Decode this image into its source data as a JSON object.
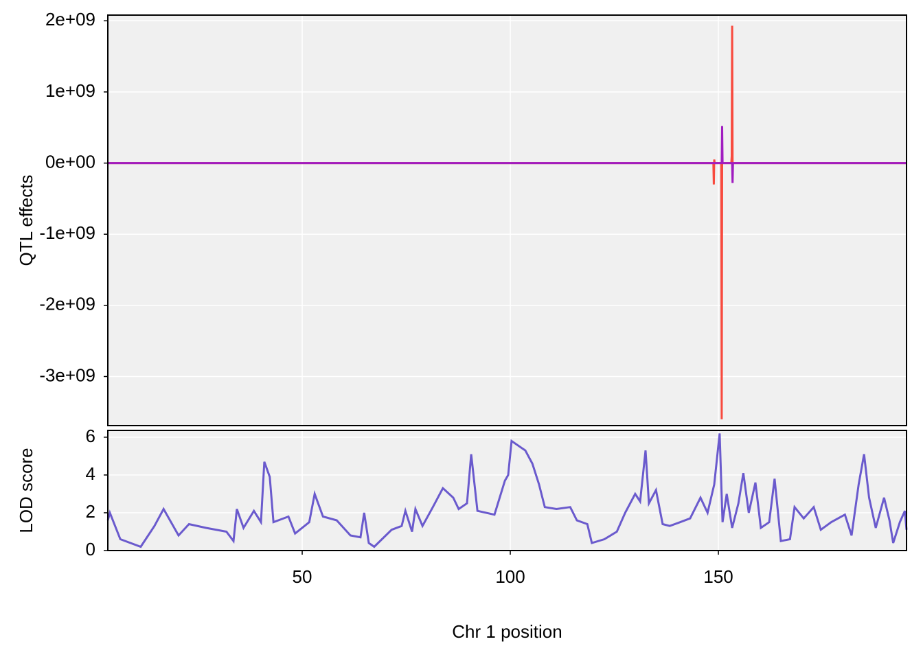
{
  "chart_data": [
    {
      "type": "line",
      "ylabel": "QTL effects",
      "x": [
        3.3,
        148.8,
        148.9,
        149.0,
        149.1,
        150.7,
        150.8,
        150.9,
        151.0,
        151.1,
        153.1,
        153.2,
        153.3,
        153.4,
        153.5,
        195.2
      ],
      "series": [
        {
          "color": "#f84a3e",
          "values": [
            0,
            0,
            -300000000,
            50000000,
            0,
            0,
            -3600000000,
            0,
            0,
            0,
            0,
            100000000,
            1930000000,
            0,
            0,
            0
          ]
        },
        {
          "color": "#a01cc0",
          "values": [
            0,
            0,
            0,
            0,
            0,
            0,
            0,
            520000000,
            0,
            0,
            0,
            0,
            0,
            -280000000,
            0,
            0
          ]
        }
      ],
      "xlim": [
        3.3,
        195.2
      ],
      "xticks": [
        50,
        100,
        150
      ],
      "ylim": [
        -3690000000,
        2080000000
      ],
      "yticks": [
        {
          "value": 2000000000,
          "label": "2e+09"
        },
        {
          "value": 1000000000,
          "label": "1e+09"
        },
        {
          "value": 0,
          "label": "0e+00"
        },
        {
          "value": -1000000000,
          "label": "-1e+09"
        },
        {
          "value": -2000000000,
          "label": "-2e+09"
        },
        {
          "value": -3000000000,
          "label": "-3e+09"
        }
      ],
      "grid": true
    },
    {
      "type": "line",
      "ylabel": "LOD score",
      "xlabel": "Chr 1 position",
      "color": "#6a5acd",
      "x": [
        3.3,
        3.8,
        6.3,
        11.2,
        14.5,
        16.7,
        20.3,
        22.8,
        26.9,
        31.8,
        33.5,
        34.3,
        35.9,
        38.4,
        40.1,
        40.9,
        42.2,
        43.1,
        46.7,
        48.3,
        51.7,
        53.0,
        55.0,
        58.3,
        61.6,
        64.0,
        64.9,
        66.0,
        67.3,
        71.5,
        73.9,
        74.8,
        76.4,
        77.2,
        78.9,
        81.4,
        83.8,
        86.3,
        87.6,
        89.6,
        90.6,
        92.1,
        96.2,
        98.7,
        99.5,
        100.3,
        103.6,
        105.3,
        106.9,
        108.3,
        111.1,
        114.4,
        116.0,
        118.5,
        119.6,
        122.6,
        125.6,
        127.6,
        130.0,
        131.2,
        132.5,
        133.3,
        135.0,
        136.6,
        138.3,
        140.8,
        143.2,
        145.7,
        147.4,
        149.0,
        150.3,
        151.0,
        152.0,
        153.3,
        154.8,
        156.0,
        157.3,
        158.9,
        160.2,
        162.2,
        163.5,
        165.0,
        167.2,
        168.3,
        170.5,
        172.9,
        174.6,
        177.1,
        180.4,
        182.0,
        183.7,
        185.0,
        186.2,
        187.8,
        189.8,
        191.1,
        192.0,
        193.6,
        194.8,
        195.2
      ],
      "values": [
        1.6,
        2.0,
        0.6,
        0.2,
        1.3,
        2.2,
        0.8,
        1.4,
        1.2,
        1.0,
        0.5,
        2.2,
        1.2,
        2.1,
        1.5,
        4.7,
        3.9,
        1.5,
        1.8,
        0.9,
        1.5,
        3.0,
        1.8,
        1.6,
        0.8,
        0.7,
        2.0,
        0.4,
        0.2,
        1.1,
        1.3,
        2.1,
        1.0,
        2.2,
        1.3,
        2.3,
        3.3,
        2.8,
        2.2,
        2.5,
        5.1,
        2.1,
        1.9,
        3.7,
        4.0,
        5.8,
        5.3,
        4.6,
        3.5,
        2.3,
        2.2,
        2.3,
        1.6,
        1.4,
        0.4,
        0.6,
        1.0,
        2.0,
        3.0,
        2.6,
        5.3,
        2.5,
        3.2,
        1.4,
        1.3,
        1.5,
        1.7,
        2.8,
        2.0,
        3.5,
        6.2,
        1.5,
        3.0,
        1.2,
        2.5,
        4.1,
        2.0,
        3.6,
        1.2,
        1.5,
        3.8,
        0.5,
        0.6,
        2.3,
        1.7,
        2.3,
        1.1,
        1.5,
        1.9,
        0.8,
        3.5,
        5.1,
        2.8,
        1.2,
        2.8,
        1.6,
        0.4,
        1.5,
        2.1,
        1.1
      ],
      "xlim": [
        3.3,
        195.2
      ],
      "xticks": [
        50,
        100,
        150
      ],
      "ylim": [
        0,
        6.36
      ],
      "yticks": [
        0,
        2,
        4,
        6
      ],
      "grid": true
    }
  ]
}
